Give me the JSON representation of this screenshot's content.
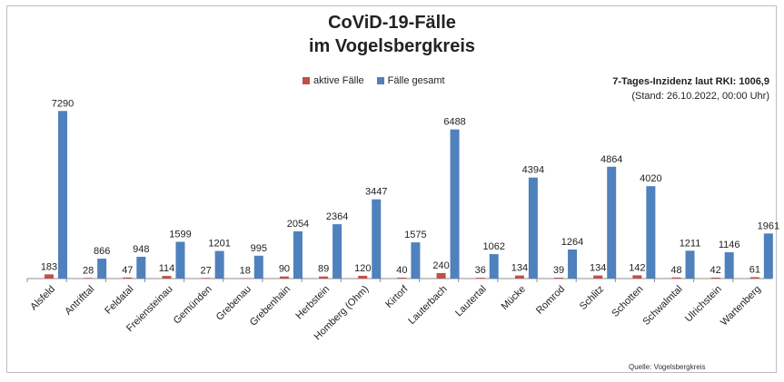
{
  "title_line1": "CoViD-19-Fälle",
  "title_line2": "im Vogelsbergkreis",
  "info_line1": "7-Tages-Inzidenz laut RKI: 1006,9",
  "info_line2": "(Stand: 26.10.2022, 00:00 Uhr)",
  "source": "Quelle: Vogelsbergkreis",
  "colors": {
    "active": "#c0504d",
    "total": "#4f81bd"
  },
  "chart_data": {
    "type": "bar",
    "categories": [
      "Alsfeld",
      "Antrifttal",
      "Feldatal",
      "Freiensteinau",
      "Gemünden",
      "Grebenau",
      "Grebenhain",
      "Herbstein",
      "Homberg (Ohm)",
      "Kirtorf",
      "Lauterbach",
      "Lautertal",
      "Mücke",
      "Romrod",
      "Schlitz",
      "Schotten",
      "Schwalmtal",
      "Ulrichstein",
      "Wartenberg"
    ],
    "series": [
      {
        "name": "aktive Fälle",
        "values": [
          183,
          28,
          47,
          114,
          27,
          18,
          90,
          89,
          120,
          40,
          240,
          36,
          134,
          39,
          134,
          142,
          48,
          42,
          61
        ]
      },
      {
        "name": "Fälle gesamt",
        "values": [
          7290,
          866,
          948,
          1599,
          1201,
          995,
          2054,
          2364,
          3447,
          1575,
          6488,
          1062,
          4394,
          1264,
          4864,
          4020,
          1211,
          1146,
          1961
        ]
      }
    ],
    "legend_position": "top-center",
    "grid": false,
    "ylim": [
      0,
      7500
    ]
  }
}
